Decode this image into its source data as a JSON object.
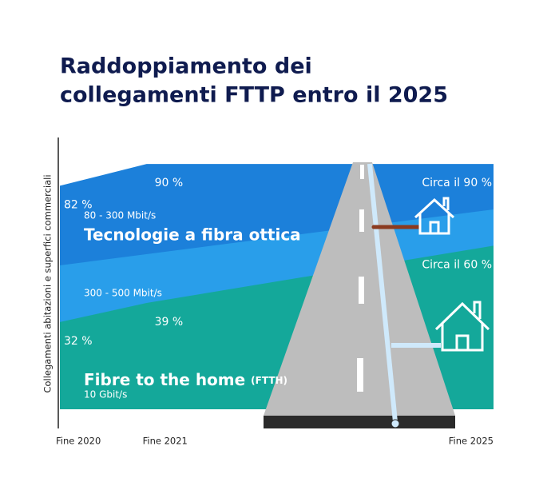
{
  "chart_data": {
    "type": "area",
    "title": [
      "Raddoppiamento dei",
      "collegamenti FTTP entro il 2025"
    ],
    "y_label": "Collegamenti abitazioni e superfici commerciali",
    "x": [
      2020,
      2021,
      2025
    ],
    "xlim": [
      2020,
      2025
    ],
    "xticks": [
      {
        "value": 2020,
        "label": "Fine 2020"
      },
      {
        "value": 2021,
        "label": "Fine 2021"
      },
      {
        "value": 2025,
        "label": "Fine 2025"
      }
    ],
    "ylim": [
      0,
      100
    ],
    "series": [
      {
        "name": "Tecnologie a fibra ottica",
        "color": "#1c80da",
        "values": [
          82,
          90,
          90
        ],
        "value_labels": [
          "82 %",
          "90 %",
          "Circa il 90 %"
        ]
      },
      {
        "name": "Fibre to the home",
        "abbr": "(FTTH)",
        "color": "#14a89a",
        "values": [
          32,
          39,
          60
        ],
        "value_labels": [
          "32 %",
          "39 %",
          "Circa il 60 %"
        ]
      }
    ],
    "annotations": [
      "80 - 300 Mbit/s",
      "300 - 500 Mbit/s",
      "10 Gbit/s"
    ]
  }
}
